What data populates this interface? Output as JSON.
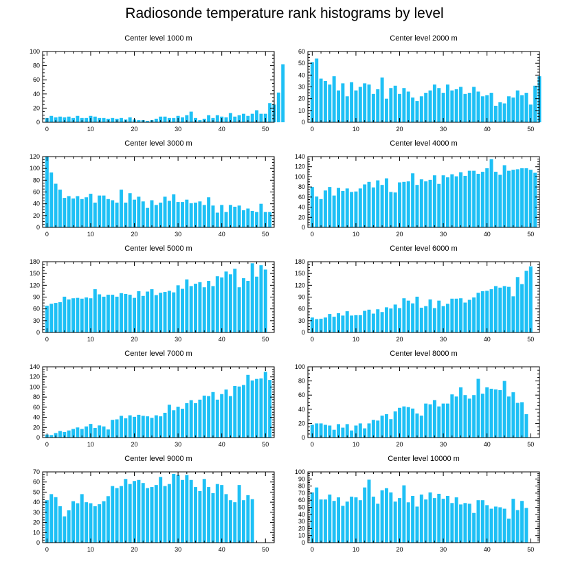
{
  "figure": {
    "title": "Radiosonde temperature rank histograms by level"
  },
  "chart_data": [
    {
      "type": "bar",
      "title": "Center level 1000 m",
      "ylim": [
        0,
        100
      ],
      "yticks": [
        0,
        20,
        40,
        60,
        80,
        100
      ],
      "xlim": [
        -1,
        52
      ],
      "xticks": [
        0,
        10,
        20,
        30,
        40,
        50
      ],
      "values": [
        6,
        9,
        7,
        8,
        7,
        8,
        6,
        9,
        6,
        6,
        9,
        8,
        6,
        6,
        5,
        6,
        5,
        6,
        4,
        7,
        4,
        3,
        3,
        2,
        3,
        5,
        8,
        8,
        6,
        6,
        9,
        7,
        10,
        15,
        6,
        3,
        5,
        10,
        6,
        10,
        8,
        7,
        13,
        8,
        10,
        12,
        9,
        12,
        17,
        12,
        12,
        27,
        25,
        42,
        82
      ]
    },
    {
      "type": "bar",
      "title": "Center level 2000 m",
      "ylim": [
        0,
        60
      ],
      "yticks": [
        0,
        10,
        20,
        30,
        40,
        50,
        60
      ],
      "xlim": [
        -1,
        52
      ],
      "xticks": [
        0,
        10,
        20,
        30,
        40,
        50
      ],
      "values": [
        51,
        54,
        37,
        35,
        32,
        39,
        27,
        33,
        22,
        34,
        27,
        30,
        33,
        32,
        24,
        28,
        38,
        20,
        29,
        31,
        24,
        29,
        26,
        21,
        18,
        22,
        25,
        27,
        32,
        29,
        25,
        32,
        27,
        28,
        30,
        24,
        25,
        30,
        26,
        22,
        23,
        25,
        14,
        17,
        16,
        22,
        21,
        27,
        23,
        25,
        15,
        31,
        39
      ]
    },
    {
      "type": "bar",
      "title": "Center level 3000 m",
      "ylim": [
        0,
        120
      ],
      "yticks": [
        0,
        20,
        40,
        60,
        80,
        100,
        120
      ],
      "xlim": [
        -1,
        52
      ],
      "xticks": [
        0,
        10,
        20,
        30,
        40,
        50
      ],
      "values": [
        120,
        93,
        74,
        64,
        50,
        53,
        49,
        53,
        48,
        51,
        57,
        42,
        54,
        54,
        48,
        46,
        42,
        64,
        42,
        58,
        47,
        52,
        44,
        33,
        46,
        38,
        42,
        52,
        45,
        56,
        43,
        43,
        47,
        41,
        42,
        44,
        38,
        51,
        37,
        25,
        38,
        26,
        38,
        35,
        37,
        29,
        32,
        28,
        26,
        40,
        26,
        26
      ]
    },
    {
      "type": "bar",
      "title": "Center level 4000 m",
      "ylim": [
        0,
        140
      ],
      "yticks": [
        0,
        20,
        40,
        60,
        80,
        100,
        120,
        140
      ],
      "xlim": [
        -1,
        52
      ],
      "xticks": [
        0,
        10,
        20,
        30,
        40,
        50
      ],
      "values": [
        80,
        61,
        56,
        73,
        80,
        63,
        78,
        72,
        77,
        70,
        71,
        77,
        85,
        90,
        79,
        93,
        84,
        97,
        70,
        69,
        89,
        90,
        91,
        107,
        84,
        95,
        91,
        94,
        103,
        86,
        103,
        99,
        105,
        101,
        109,
        102,
        112,
        112,
        106,
        110,
        117,
        135,
        110,
        104,
        123,
        112,
        114,
        115,
        117,
        117,
        114,
        108
      ]
    },
    {
      "type": "bar",
      "title": "Center level 5000 m",
      "ylim": [
        0,
        180
      ],
      "yticks": [
        0,
        30,
        60,
        90,
        120,
        150,
        180
      ],
      "xlim": [
        -1,
        52
      ],
      "xticks": [
        0,
        10,
        20,
        30,
        40,
        50
      ],
      "values": [
        68,
        73,
        75,
        77,
        91,
        84,
        87,
        88,
        86,
        89,
        87,
        110,
        97,
        91,
        96,
        96,
        91,
        100,
        98,
        96,
        88,
        105,
        93,
        104,
        110,
        95,
        101,
        103,
        106,
        102,
        120,
        111,
        135,
        118,
        124,
        128,
        115,
        131,
        118,
        143,
        140,
        155,
        148,
        162,
        115,
        138,
        131,
        176,
        142,
        171,
        160
      ]
    },
    {
      "type": "bar",
      "title": "Center level 6000 m",
      "ylim": [
        0,
        180
      ],
      "yticks": [
        0,
        30,
        60,
        90,
        120,
        150,
        180
      ],
      "xlim": [
        -1,
        52
      ],
      "xticks": [
        0,
        10,
        20,
        30,
        40,
        50
      ],
      "values": [
        38,
        34,
        35,
        38,
        47,
        40,
        49,
        43,
        54,
        43,
        44,
        44,
        55,
        58,
        48,
        59,
        52,
        64,
        61,
        71,
        62,
        87,
        81,
        74,
        91,
        63,
        67,
        84,
        62,
        81,
        67,
        73,
        86,
        86,
        87,
        76,
        83,
        89,
        101,
        105,
        106,
        110,
        118,
        114,
        118,
        116,
        92,
        141,
        123,
        157,
        168
      ]
    },
    {
      "type": "bar",
      "title": "Center level 7000 m",
      "ylim": [
        0,
        140
      ],
      "yticks": [
        0,
        20,
        40,
        60,
        80,
        100,
        120,
        140
      ],
      "xlim": [
        -1,
        52
      ],
      "xticks": [
        0,
        10,
        20,
        30,
        40,
        50
      ],
      "values": [
        6,
        5,
        9,
        13,
        11,
        14,
        17,
        20,
        17,
        22,
        27,
        19,
        24,
        22,
        16,
        35,
        36,
        43,
        38,
        44,
        41,
        45,
        43,
        42,
        39,
        44,
        42,
        49,
        65,
        54,
        61,
        57,
        68,
        74,
        68,
        75,
        83,
        82,
        90,
        75,
        86,
        95,
        82,
        102,
        101,
        104,
        124,
        113,
        116,
        117,
        130,
        114
      ]
    },
    {
      "type": "bar",
      "title": "Center level 8000 m",
      "ylim": [
        0,
        100
      ],
      "yticks": [
        0,
        20,
        40,
        60,
        80,
        100
      ],
      "xlim": [
        -1,
        52
      ],
      "xticks": [
        0,
        10,
        20,
        30,
        40,
        50
      ],
      "values": [
        18,
        20,
        20,
        18,
        17,
        11,
        19,
        14,
        19,
        10,
        17,
        20,
        13,
        20,
        25,
        24,
        31,
        33,
        26,
        37,
        42,
        44,
        43,
        41,
        34,
        31,
        48,
        47,
        53,
        44,
        48,
        48,
        61,
        58,
        71,
        60,
        55,
        60,
        83,
        62,
        71,
        69,
        68,
        67,
        80,
        58,
        64,
        49,
        50,
        33
      ]
    },
    {
      "type": "bar",
      "title": "Center level 9000 m",
      "ylim": [
        0,
        70
      ],
      "yticks": [
        0,
        10,
        20,
        30,
        40,
        50,
        60,
        70
      ],
      "xlim": [
        -1,
        52
      ],
      "xticks": [
        0,
        10,
        20,
        30,
        40,
        50
      ],
      "values": [
        42,
        48,
        45,
        36,
        26,
        32,
        41,
        39,
        48,
        40,
        39,
        36,
        38,
        41,
        46,
        56,
        54,
        56,
        63,
        58,
        61,
        62,
        59,
        54,
        55,
        57,
        65,
        56,
        58,
        68,
        67,
        62,
        67,
        62,
        55,
        51,
        63,
        55,
        49,
        58,
        57,
        48,
        42,
        40,
        57,
        42,
        47,
        43
      ]
    },
    {
      "type": "bar",
      "title": "Center level 10000 m",
      "ylim": [
        0,
        100
      ],
      "yticks": [
        0,
        10,
        20,
        30,
        40,
        50,
        60,
        70,
        80,
        90,
        100
      ],
      "xlim": [
        -1,
        52
      ],
      "xticks": [
        0,
        10,
        20,
        30,
        40,
        50
      ],
      "values": [
        71,
        78,
        61,
        61,
        68,
        59,
        64,
        52,
        58,
        65,
        64,
        60,
        78,
        89,
        65,
        55,
        74,
        77,
        71,
        58,
        63,
        81,
        57,
        66,
        51,
        68,
        61,
        71,
        63,
        69,
        62,
        66,
        56,
        64,
        54,
        56,
        55,
        42,
        60,
        60,
        53,
        48,
        51,
        50,
        48,
        34,
        62,
        46,
        59,
        49
      ]
    }
  ]
}
